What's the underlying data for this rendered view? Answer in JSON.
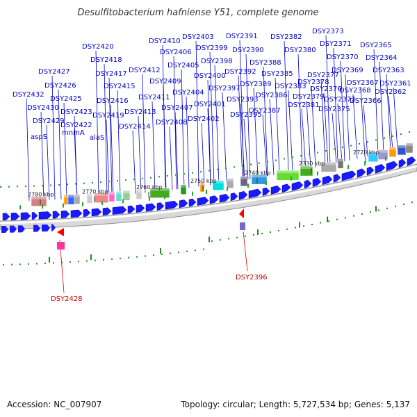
{
  "title": "Desulfitobacterium hafniense Y51, complete genome",
  "footer": {
    "accession": "Accession: NC_007907",
    "info": "Topology: circular; Length: 5,727,534 bp; Genes: 5,137"
  },
  "colors": {
    "label_blue": "#0000cc",
    "label_red": "#cc0000",
    "arrow_blue": "#1a1aff",
    "backbone": "#9a9a9a"
  },
  "ticks": [
    "2780 kbp",
    "2770 kbp",
    "2760 kbp",
    "2750 kbp",
    "2740 kbp",
    "2730 kbp",
    "2720 kbp"
  ],
  "gene_names": [
    "aspS",
    "mnmA",
    "alaS"
  ],
  "forward_labels": [
    "DSY2432",
    "DSY2430",
    "DSY2429",
    "DSY2427",
    "DSY2426",
    "DSY2425",
    "DSY2423",
    "DSY2422",
    "DSY2420",
    "DSY2418",
    "DSY2417",
    "DSY2419",
    "DSY2416",
    "DSY2415",
    "DSY2414",
    "DSY2413",
    "DSY2412",
    "DSY2411",
    "DSY2410",
    "DSY2409",
    "DSY2408",
    "DSY2407",
    "DSY2406",
    "DSY2405",
    "DSY2404",
    "DSY2403",
    "DSY2402",
    "DSY2401",
    "DSY2400",
    "DSY2399",
    "DSY2398",
    "DSY2397",
    "DSY2395",
    "DSY2393",
    "DSY2392",
    "DSY2391",
    "DSY2390",
    "DSY2389",
    "DSY2388",
    "DSY2387",
    "DSY2386",
    "DSY2385",
    "DSY2383",
    "DSY2382",
    "DSY2381",
    "DSY2380",
    "DSY2379",
    "DSY2378",
    "DSY2377",
    "DSY2376",
    "DSY2375",
    "DSY2373",
    "DSY2372",
    "DSY2371",
    "DSY2370",
    "DSY2369",
    "DSY2368",
    "DSY2367",
    "DSY2366",
    "DSY2365",
    "DSY2364",
    "DSY2363",
    "DSY2362",
    "DSY2361"
  ],
  "reverse_labels": [
    "DSY2428",
    "DSY2396"
  ]
}
